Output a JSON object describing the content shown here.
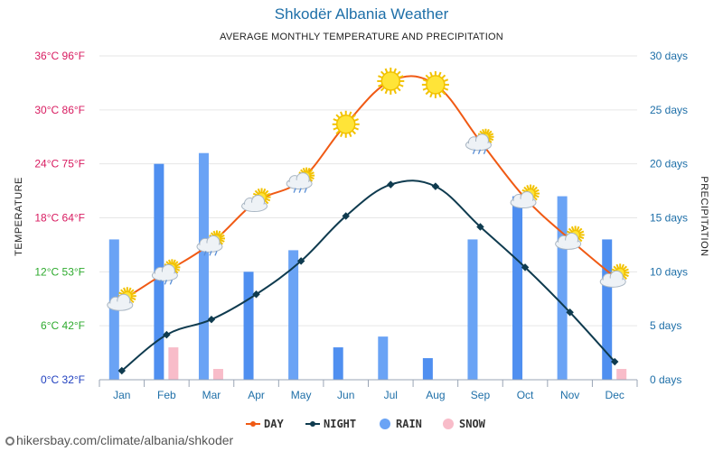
{
  "title": "Shkodër Albania Weather",
  "subtitle": "AVERAGE MONTHLY TEMPERATURE AND PRECIPITATION",
  "footer_url": "hikersbay.com/climate/albania/shkoder",
  "colors": {
    "day": "#f05a14",
    "night": "#0f3b4f",
    "rain": "#4f8ff0",
    "rain_light": "#6aa3f5",
    "snow": "#f8bcc9",
    "grid": "#e6e6e6"
  },
  "chart_data": {
    "type": "line+bar",
    "title": "Shkodër Albania Weather",
    "subtitle": "AVERAGE MONTHLY TEMPERATURE AND PRECIPITATION",
    "ylabel_left": "TEMPERATURE",
    "ylabel_right": "PRECIPITATION",
    "categories": [
      "Jan",
      "Feb",
      "Mar",
      "Apr",
      "May",
      "Jun",
      "Jul",
      "Aug",
      "Sep",
      "Oct",
      "Nov",
      "Dec"
    ],
    "left_axis": {
      "range": [
        0,
        36
      ],
      "ticks": [
        {
          "value": 0,
          "label": "0°C 32°F",
          "color": "#1f3fbf"
        },
        {
          "value": 6,
          "label": "6°C 42°F",
          "color": "#2eaa2e"
        },
        {
          "value": 12,
          "label": "12°C 53°F",
          "color": "#2eaa2e"
        },
        {
          "value": 18,
          "label": "18°C 64°F",
          "color": "#d81b60"
        },
        {
          "value": 24,
          "label": "24°C 75°F",
          "color": "#d81b60"
        },
        {
          "value": 30,
          "label": "30°C 86°F",
          "color": "#d81b60"
        },
        {
          "value": 36,
          "label": "36°C 96°F",
          "color": "#d81b60"
        }
      ]
    },
    "right_axis": {
      "range": [
        0,
        30
      ],
      "ticks": [
        {
          "value": 0,
          "label": "0 days"
        },
        {
          "value": 5,
          "label": "5 days"
        },
        {
          "value": 10,
          "label": "10 days"
        },
        {
          "value": 15,
          "label": "15 days"
        },
        {
          "value": 20,
          "label": "20 days"
        },
        {
          "value": 25,
          "label": "25 days"
        },
        {
          "value": 30,
          "label": "30 days"
        }
      ]
    },
    "grid": true,
    "legend_position": "bottom",
    "series": [
      {
        "name": "DAY",
        "type": "line",
        "axis": "left",
        "values": [
          8.8,
          12.0,
          15.2,
          19.8,
          22.2,
          28.4,
          33.2,
          32.8,
          26.5,
          20.2,
          15.6,
          11.4
        ],
        "icons": [
          "sun-cloud",
          "rain",
          "rain",
          "sun-cloud",
          "rain",
          "sun",
          "sun",
          "sun",
          "rain",
          "sun-cloud",
          "sun-cloud",
          "sun-cloud"
        ]
      },
      {
        "name": "NIGHT",
        "type": "line",
        "axis": "left",
        "values": [
          1.0,
          5.0,
          6.7,
          9.5,
          13.2,
          18.2,
          21.7,
          21.5,
          17.0,
          12.5,
          7.5,
          2.0
        ]
      },
      {
        "name": "RAIN",
        "type": "bar",
        "axis": "right",
        "values": [
          13,
          20,
          21,
          10,
          12,
          3,
          4,
          2,
          13,
          17,
          17,
          13
        ]
      },
      {
        "name": "SNOW",
        "type": "bar",
        "axis": "right",
        "values": [
          0,
          3,
          1,
          0,
          0,
          0,
          0,
          0,
          0,
          0,
          0,
          1
        ]
      }
    ]
  }
}
